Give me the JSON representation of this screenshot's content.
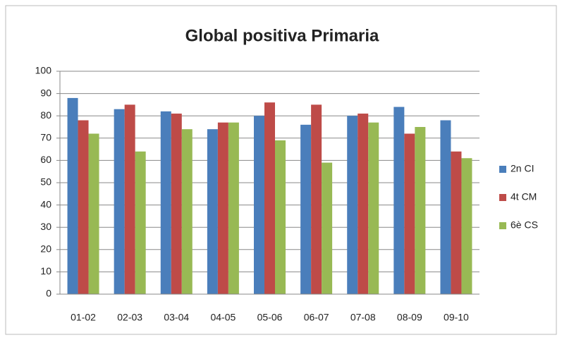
{
  "chart_data": {
    "type": "bar",
    "title": "Global positiva  Primaria",
    "categories": [
      "01-02",
      "02-03",
      "03-04",
      "04-05",
      "05-06",
      "06-07",
      "07-08",
      "08-09",
      "09-10"
    ],
    "series": [
      {
        "name": "2n CI",
        "color": "#4a7ebb",
        "values": [
          88,
          83,
          82,
          74,
          80,
          76,
          80,
          84,
          78
        ]
      },
      {
        "name": "4t CM",
        "color": "#be4b48",
        "values": [
          78,
          85,
          81,
          77,
          86,
          85,
          81,
          72,
          64
        ]
      },
      {
        "name": "6è CS",
        "color": "#98b954",
        "values": [
          72,
          64,
          74,
          77,
          69,
          59,
          77,
          75,
          61
        ]
      }
    ],
    "ylim": [
      0,
      100
    ],
    "yticks": [
      0,
      10,
      20,
      30,
      40,
      50,
      60,
      70,
      80,
      90,
      100
    ],
    "grid": true,
    "legend": "right"
  }
}
